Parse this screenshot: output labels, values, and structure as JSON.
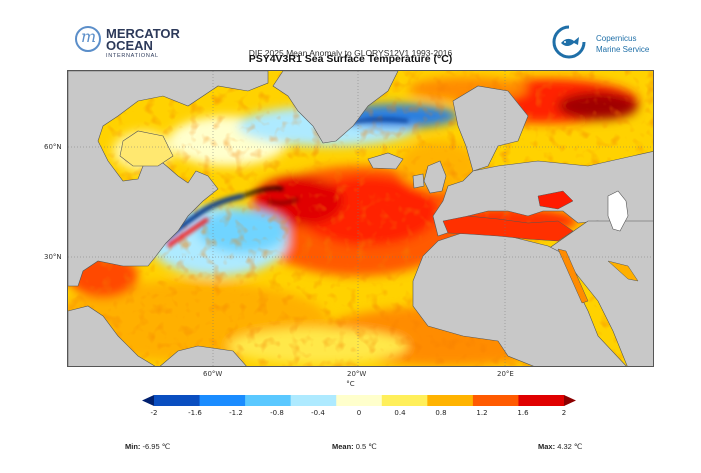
{
  "header": {
    "left_logo": {
      "line1": "MERCATOR",
      "line2": "OCEAN",
      "line3": "INTERNATIONAL",
      "icon": "mercator-m-logo-icon"
    },
    "right_logo": {
      "line1": "Copernicus",
      "line2": "Marine Service",
      "icon": "copernicus-fish-logo-icon"
    }
  },
  "title": {
    "overlapped_text": "DIF 2025 Mean Anomaly to GLORYS12V1 1993-2016",
    "main": "PSY4V3R1 Sea Surface Temperature (°C)"
  },
  "map": {
    "lat_labels": [
      "60°N",
      "30°N"
    ],
    "lon_labels": [
      "60°W",
      "20°W",
      "20°E"
    ],
    "unit": "°C",
    "land_color": "#c8c8c8",
    "colors": {
      "strong_cold": "#00308a",
      "cold": "#0080ff",
      "light_cold": "#5ad2ff",
      "pale_cold": "#b4f0ff",
      "neutral": "#ffffd4",
      "light_warm": "#ffe000",
      "warm": "#ff8c00",
      "hot": "#ff2000",
      "very_hot": "#b40000"
    }
  },
  "colorbar": {
    "ticks": [
      "-2",
      "-1.6",
      "-1.2",
      "-0.8",
      "-0.4",
      "0",
      "0.4",
      "0.8",
      "1.2",
      "1.6",
      "2"
    ],
    "colors": [
      "#00206f",
      "#0a4ec0",
      "#1a8cff",
      "#5ac8ff",
      "#aeeaff",
      "#ffffcc",
      "#ffef5a",
      "#ffb300",
      "#ff5a00",
      "#e00000",
      "#8c0000"
    ]
  },
  "stats": {
    "min_label": "Min:",
    "min_value": "-6.95 ℃",
    "mean_label": "Mean:",
    "mean_value": "0.5 ℃",
    "max_label": "Max:",
    "max_value": "4.32 ℃"
  }
}
